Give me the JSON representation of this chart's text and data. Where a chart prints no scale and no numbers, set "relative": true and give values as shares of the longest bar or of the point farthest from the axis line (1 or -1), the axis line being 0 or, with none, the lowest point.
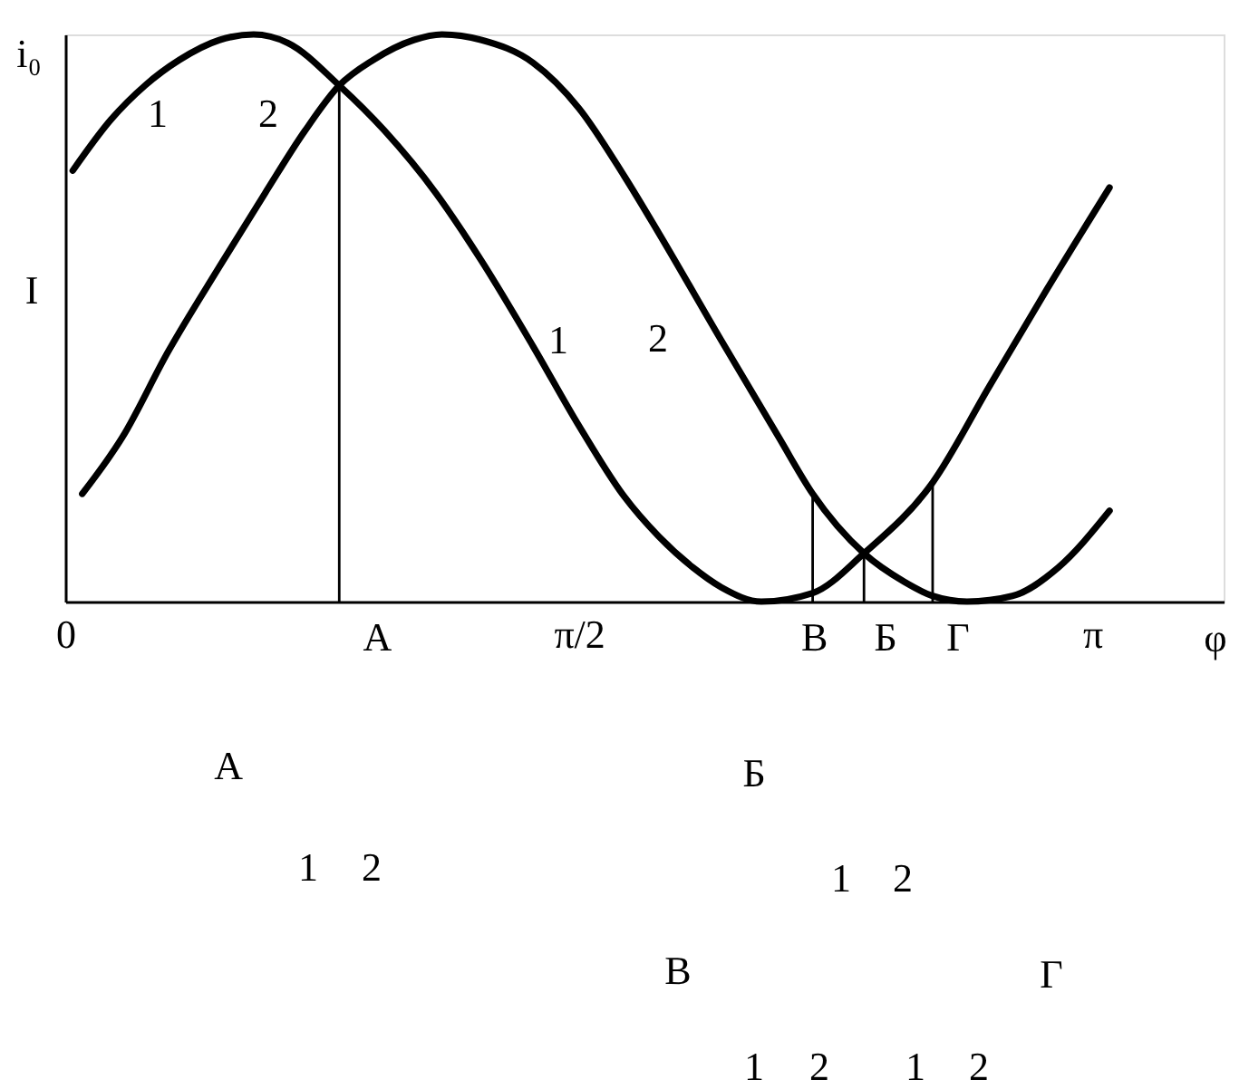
{
  "chart_data": {
    "type": "line",
    "xlabel": "φ",
    "ylabel": "I",
    "relative": true,
    "xlim": [
      0,
      3.543
    ],
    "xticks": [
      {
        "value": 0,
        "label": "0"
      },
      {
        "value": 1.5708,
        "label": "π/2"
      },
      {
        "value": 3.1416,
        "label": "π"
      }
    ],
    "grid": false,
    "series": [
      {
        "name": "1",
        "color": "#000000",
        "x": [
          0.023,
          0.14,
          0.244,
          0.349,
          0.471,
          0.576,
          0.681,
          0.838,
          0.977,
          1.134,
          1.274,
          1.431,
          1.571,
          1.71,
          1.815,
          1.92,
          2.007,
          2.129,
          2.286,
          2.443,
          2.653,
          2.827,
          3.002,
          3.194
        ],
        "values": [
          0.76,
          0.85,
          0.91,
          0.955,
          0.99,
          1.0,
          0.985,
          0.91,
          0.83,
          0.72,
          0.6,
          0.45,
          0.31,
          0.185,
          0.115,
          0.06,
          0.025,
          0,
          0.015,
          0.085,
          0.21,
          0.38,
          0.55,
          0.73
        ]
      },
      {
        "name": "2",
        "color": "#000000",
        "x": [
          0.052,
          0.175,
          0.314,
          0.471,
          0.611,
          0.733,
          0.838,
          0.942,
          1.065,
          1.152,
          1.274,
          1.431,
          1.571,
          1.71,
          1.815,
          2.007,
          2.182,
          2.286,
          2.443,
          2.566,
          2.653,
          2.758,
          2.897,
          3.037,
          3.194
        ],
        "values": [
          0.19,
          0.29,
          0.44,
          0.59,
          0.72,
          0.83,
          0.91,
          0.955,
          0.99,
          1.0,
          0.99,
          0.95,
          0.87,
          0.75,
          0.65,
          0.46,
          0.29,
          0.19,
          0.085,
          0.035,
          0.01,
          0,
          0.01,
          0.06,
          0.16
        ]
      },
      {
        "type": "line",
        "color": "#000000",
        "x": [
          0.838,
          0.838
        ],
        "values": [
          0,
          0.91
        ]
      },
      {
        "type": "line",
        "color": "#000000",
        "x": [
          2.286,
          2.286
        ],
        "values": [
          0,
          0.19
        ]
      },
      {
        "type": "line",
        "color": "#000000",
        "x": [
          2.443,
          2.443
        ],
        "values": [
          0,
          0.085
        ]
      },
      {
        "type": "line",
        "color": "#000000",
        "x": [
          2.653,
          2.653
        ],
        "values": [
          0,
          0.21
        ]
      }
    ],
    "annotations": [
      "i₀",
      {
        "text": "А",
        "x": 0.838,
        "y": 0
      },
      {
        "text": "В",
        "x": 2.286,
        "y": 0
      },
      {
        "text": "Б",
        "x": 2.443,
        "y": 0
      },
      {
        "text": "Г",
        "x": 2.653,
        "y": 0
      },
      "А",
      "1",
      "2",
      "Б",
      "1",
      "2",
      "В",
      "1",
      "2",
      "Г",
      "1",
      "2"
    ]
  }
}
